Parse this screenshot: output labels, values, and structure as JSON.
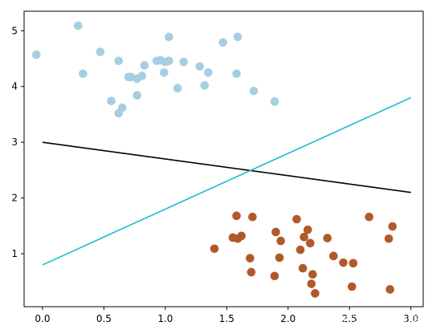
{
  "chart_data": {
    "type": "scatter",
    "title": "",
    "xlabel": "",
    "ylabel": "",
    "xlim": [
      -0.15,
      3.1
    ],
    "ylim": [
      0.05,
      5.35
    ],
    "grid": false,
    "xticks": [
      0.0,
      0.5,
      1.0,
      1.5,
      2.0,
      2.5,
      3.0
    ],
    "xtick_labels": [
      "0.0",
      "0.5",
      "1.0",
      "1.5",
      "2.0",
      "2.5",
      "3.0"
    ],
    "yticks": [
      1,
      2,
      3,
      4,
      5
    ],
    "ytick_labels": [
      "1",
      "2",
      "3",
      "4",
      "5"
    ],
    "series": [
      {
        "kind": "scatter",
        "color": "#a6cee3",
        "points": [
          [
            -0.05,
            4.57
          ],
          [
            0.29,
            5.09
          ],
          [
            0.33,
            4.23
          ],
          [
            0.47,
            4.62
          ],
          [
            0.56,
            3.74
          ],
          [
            0.62,
            4.46
          ],
          [
            0.62,
            3.52
          ],
          [
            0.65,
            3.62
          ],
          [
            0.7,
            4.17
          ],
          [
            0.72,
            4.17
          ],
          [
            0.77,
            3.84
          ],
          [
            0.77,
            4.14
          ],
          [
            0.81,
            4.19
          ],
          [
            0.83,
            4.38
          ],
          [
            0.93,
            4.46
          ],
          [
            0.96,
            4.47
          ],
          [
            0.99,
            4.25
          ],
          [
            1.0,
            4.44
          ],
          [
            1.03,
            4.89
          ],
          [
            1.03,
            4.46
          ],
          [
            1.1,
            3.97
          ],
          [
            1.15,
            4.44
          ],
          [
            1.28,
            4.36
          ],
          [
            1.32,
            4.02
          ],
          [
            1.35,
            4.25
          ],
          [
            1.47,
            4.79
          ],
          [
            1.58,
            4.23
          ],
          [
            1.59,
            4.89
          ],
          [
            1.72,
            3.92
          ],
          [
            1.89,
            3.73
          ]
        ]
      },
      {
        "kind": "scatter",
        "color": "#b15928",
        "points": [
          [
            1.4,
            1.09
          ],
          [
            1.55,
            1.29
          ],
          [
            1.58,
            1.68
          ],
          [
            1.59,
            1.27
          ],
          [
            1.62,
            1.32
          ],
          [
            1.69,
            0.92
          ],
          [
            1.7,
            0.67
          ],
          [
            1.71,
            1.66
          ],
          [
            1.89,
            0.6
          ],
          [
            1.9,
            1.39
          ],
          [
            1.93,
            0.93
          ],
          [
            1.94,
            1.23
          ],
          [
            2.07,
            1.62
          ],
          [
            2.1,
            1.07
          ],
          [
            2.12,
            0.74
          ],
          [
            2.13,
            1.3
          ],
          [
            2.16,
            1.43
          ],
          [
            2.18,
            1.19
          ],
          [
            2.19,
            0.46
          ],
          [
            2.2,
            0.63
          ],
          [
            2.22,
            0.29
          ],
          [
            2.32,
            1.28
          ],
          [
            2.37,
            0.96
          ],
          [
            2.45,
            0.84
          ],
          [
            2.52,
            0.41
          ],
          [
            2.53,
            0.83
          ],
          [
            2.66,
            1.66
          ],
          [
            2.82,
            1.27
          ],
          [
            2.83,
            0.36
          ],
          [
            2.85,
            1.49
          ]
        ]
      },
      {
        "kind": "line",
        "color": "#000000",
        "x": [
          0.0,
          3.0
        ],
        "y": [
          3.0,
          2.1
        ]
      },
      {
        "kind": "line",
        "color": "#17becf",
        "x": [
          0.0,
          3.0
        ],
        "y": [
          0.8,
          3.8
        ]
      }
    ],
    "watermark": "CSDN @汀、人工智能"
  }
}
